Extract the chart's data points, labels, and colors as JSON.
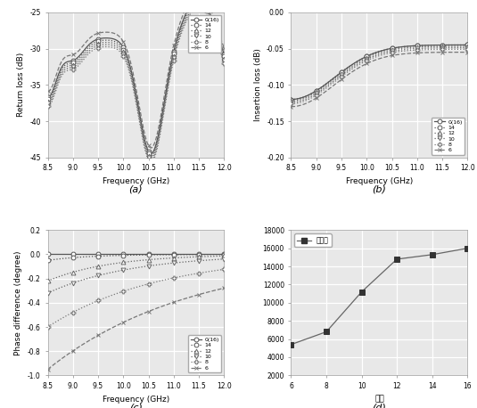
{
  "legend_labels": [
    "0(16)",
    "14",
    "12",
    "10",
    "8",
    "6"
  ],
  "xlabel_freq": "Frequency (GHz)",
  "ylabel_a": "Return loss (dB)",
  "ylabel_b": "Insertion loss (dB)",
  "ylabel_c": "Phase difference (degree)",
  "ylabel_d": "网格数",
  "label_a": "(a)",
  "label_b": "(b)",
  "label_c": "(c)",
  "label_d": "(d)",
  "xlim_freq": [
    8.5,
    12.0
  ],
  "ylim_a": [
    -45,
    -25
  ],
  "ylim_b": [
    -0.2,
    0.0
  ],
  "ylim_c": [
    -1.0,
    0.2
  ],
  "xlim_d": [
    6,
    16
  ],
  "ylim_d": [
    2000,
    18000
  ],
  "yticks_a": [
    -45,
    -40,
    -35,
    -30,
    -25
  ],
  "yticks_b": [
    -0.2,
    -0.15,
    -0.1,
    -0.05,
    0.0
  ],
  "yticks_c": [
    -1.0,
    -0.8,
    -0.6,
    -0.4,
    -0.2,
    0.0,
    0.2
  ],
  "yticks_d": [
    2000,
    4000,
    6000,
    8000,
    10000,
    12000,
    14000,
    16000,
    18000
  ],
  "xticks_freq": [
    8.5,
    9.0,
    9.5,
    10.0,
    10.5,
    11.0,
    11.5,
    12.0
  ],
  "xticks_d": [
    6,
    8,
    10,
    12,
    14,
    16
  ],
  "mesh_x": [
    6,
    8,
    10,
    12,
    14,
    16
  ],
  "mesh_y": [
    5400,
    6800,
    11200,
    14800,
    15300,
    16000
  ],
  "bg_color": "#e8e8e8",
  "grid_color": "#ffffff",
  "line_color": "#666666"
}
